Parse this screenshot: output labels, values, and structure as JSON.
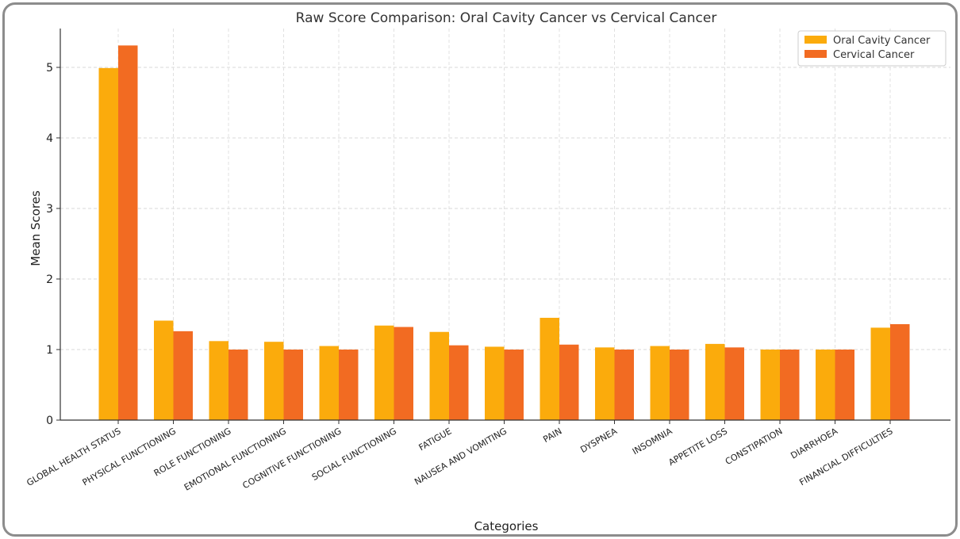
{
  "chart_data": {
    "type": "bar",
    "title": "Raw Score Comparison: Oral Cavity Cancer vs Cervical Cancer",
    "xlabel": "Categories",
    "ylabel": "Mean Scores",
    "ylim": [
      0,
      5.55
    ],
    "yticks": [
      "0",
      "1",
      "2",
      "3",
      "4",
      "5"
    ],
    "grid": true,
    "legend_position": "top-right",
    "categories": [
      "GLOBAL HEALTH STATUS",
      "PHYSICAL FUNCTIONING",
      "ROLE FUNCTIONING",
      "EMOTIONAL FUNCTIONING",
      "COGNITIVE FUNCTIONING",
      "SOCIAL FUNCTIONING",
      "FATIGUE",
      "NAUSEA AND VOMITING",
      "PAIN",
      "DYSPNEA",
      "INSOMNIA",
      "APPETITE LOSS",
      "CONSTIPATION",
      "DIARRHOEA",
      "FINANCIAL DIFFICULTIES"
    ],
    "series": [
      {
        "name": "Oral Cavity Cancer",
        "color": "#fbab0c",
        "values": [
          4.99,
          1.41,
          1.12,
          1.11,
          1.05,
          1.34,
          1.25,
          1.04,
          1.45,
          1.03,
          1.05,
          1.08,
          1.0,
          1.0,
          1.31
        ]
      },
      {
        "name": "Cervical Cancer",
        "color": "#f26b22",
        "values": [
          5.31,
          1.26,
          1.0,
          1.0,
          1.0,
          1.32,
          1.06,
          1.0,
          1.07,
          1.0,
          1.0,
          1.03,
          1.0,
          1.0,
          1.36
        ]
      }
    ]
  }
}
